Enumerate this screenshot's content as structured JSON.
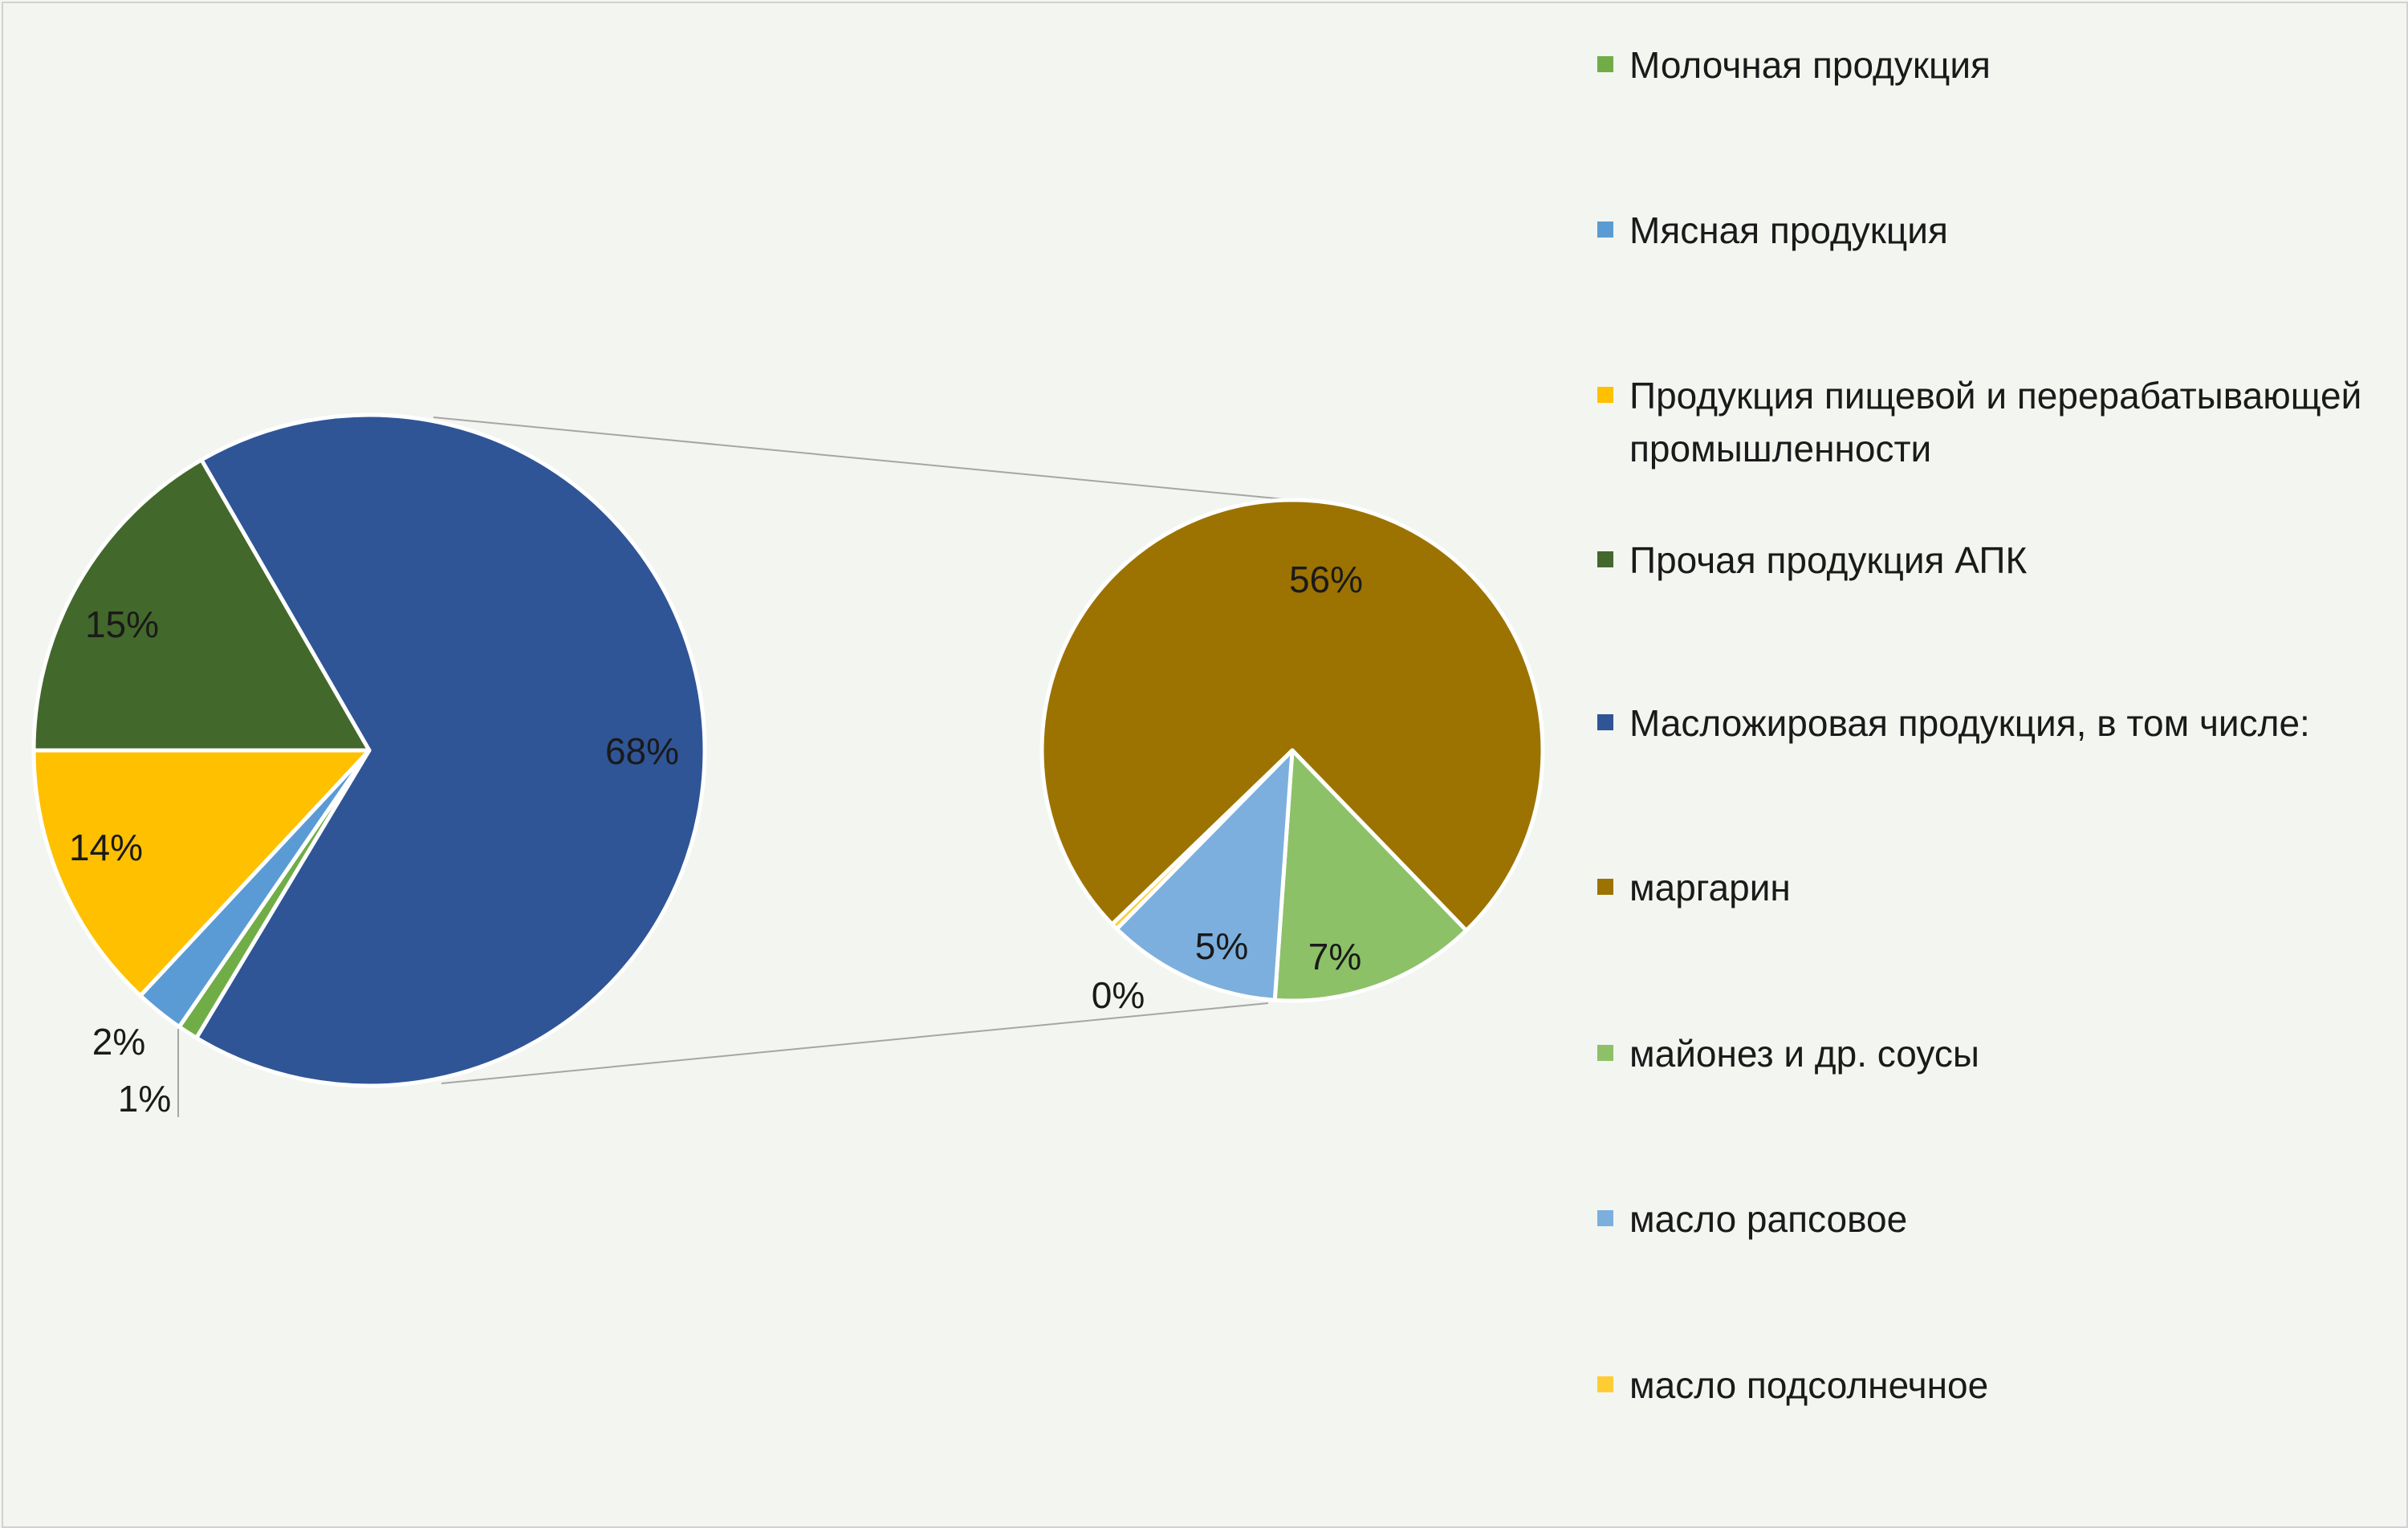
{
  "chart_data": {
    "type": "pie",
    "subtype": "pie-of-pie",
    "legend_position": "right",
    "main_pie": {
      "slices": [
        {
          "name": "Масложировая продукция, в том числе:",
          "value": 68,
          "label": "68%",
          "color": "#2f5597"
        },
        {
          "name": "Молочная продукция",
          "value": 1,
          "label": "1%",
          "color": "#70ad47"
        },
        {
          "name": "Мясная продукция",
          "value": 2,
          "label": "2%",
          "color": "#5b9bd5"
        },
        {
          "name": "Продукция пищевой и перерабатывающей промышленности",
          "value": 14,
          "label": "14%",
          "color": "#ffc000"
        },
        {
          "name": "Прочая продукция АПК",
          "value": 15,
          "label": "15%",
          "color": "#43682b"
        }
      ]
    },
    "secondary_pie": {
      "slices": [
        {
          "name": "маргарин",
          "value": 56,
          "label": "56%",
          "color": "#9c7300"
        },
        {
          "name": "майонез и др. соусы",
          "value": 7,
          "label": "7%",
          "color": "#8cc168"
        },
        {
          "name": "масло рапсовое",
          "value": 5,
          "label": "5%",
          "color": "#7cafdd"
        },
        {
          "name": "масло подсолнечное",
          "value": 0,
          "label": "0%",
          "color": "#ffcd33"
        }
      ]
    },
    "legend": [
      {
        "name": "Молочная продукция",
        "color": "#70ad47"
      },
      {
        "name": "Мясная продукция",
        "color": "#5b9bd5"
      },
      {
        "name": "Продукция пищевой и перерабатывающей промышленности",
        "color": "#ffc000"
      },
      {
        "name": "Прочая продукция АПК",
        "color": "#43682b"
      },
      {
        "name": "Масложировая продукция, в том числе:",
        "color": "#2f5597"
      },
      {
        "name": "маргарин",
        "color": "#9c7300"
      },
      {
        "name": "майонез и др. соусы",
        "color": "#8cc168"
      },
      {
        "name": "масло рапсовое",
        "color": "#7cafdd"
      },
      {
        "name": "масло подсолнечное",
        "color": "#ffcd33"
      }
    ]
  }
}
